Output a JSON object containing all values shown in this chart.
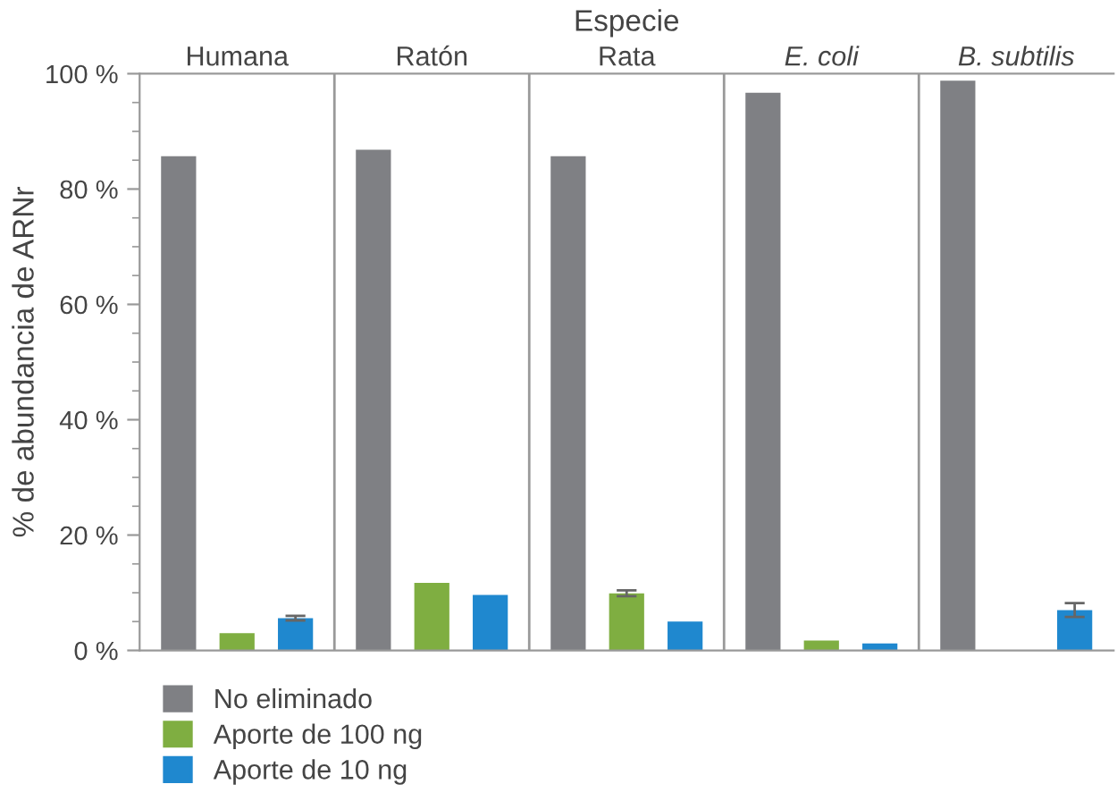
{
  "chart_data": {
    "type": "bar",
    "xlabel": "Especie",
    "ylabel": "% de abundancia de ARNr",
    "categories": [
      "Humana",
      "Ratón",
      "Rata",
      "E. coli",
      "B. subtilis"
    ],
    "series": [
      {
        "name": "No eliminado",
        "color": "#7f8084",
        "values": [
          85.7,
          86.8,
          85.7,
          96.7,
          98.8
        ]
      },
      {
        "name": "Aporte de 100 ng",
        "color": "#7fae41",
        "values": [
          3.0,
          11.7,
          9.9,
          1.7,
          null
        ],
        "errors": [
          null,
          null,
          0.5,
          null,
          null
        ]
      },
      {
        "name": "Aporte de 10 ng",
        "color": "#1f88cf",
        "values": [
          5.6,
          9.6,
          5.0,
          1.2,
          7.0
        ],
        "errors": [
          0.4,
          null,
          null,
          null,
          1.2
        ]
      }
    ],
    "ylim": [
      0,
      100
    ],
    "yticks": [
      {
        "value": 0,
        "label": "0 %"
      },
      {
        "value": 20,
        "label": "20 %"
      },
      {
        "value": 40,
        "label": "40 %"
      },
      {
        "value": 60,
        "label": "60 %"
      },
      {
        "value": 80,
        "label": "80 %"
      },
      {
        "value": 100,
        "label": "100 %"
      }
    ],
    "grid": false,
    "legend": "bottom"
  }
}
